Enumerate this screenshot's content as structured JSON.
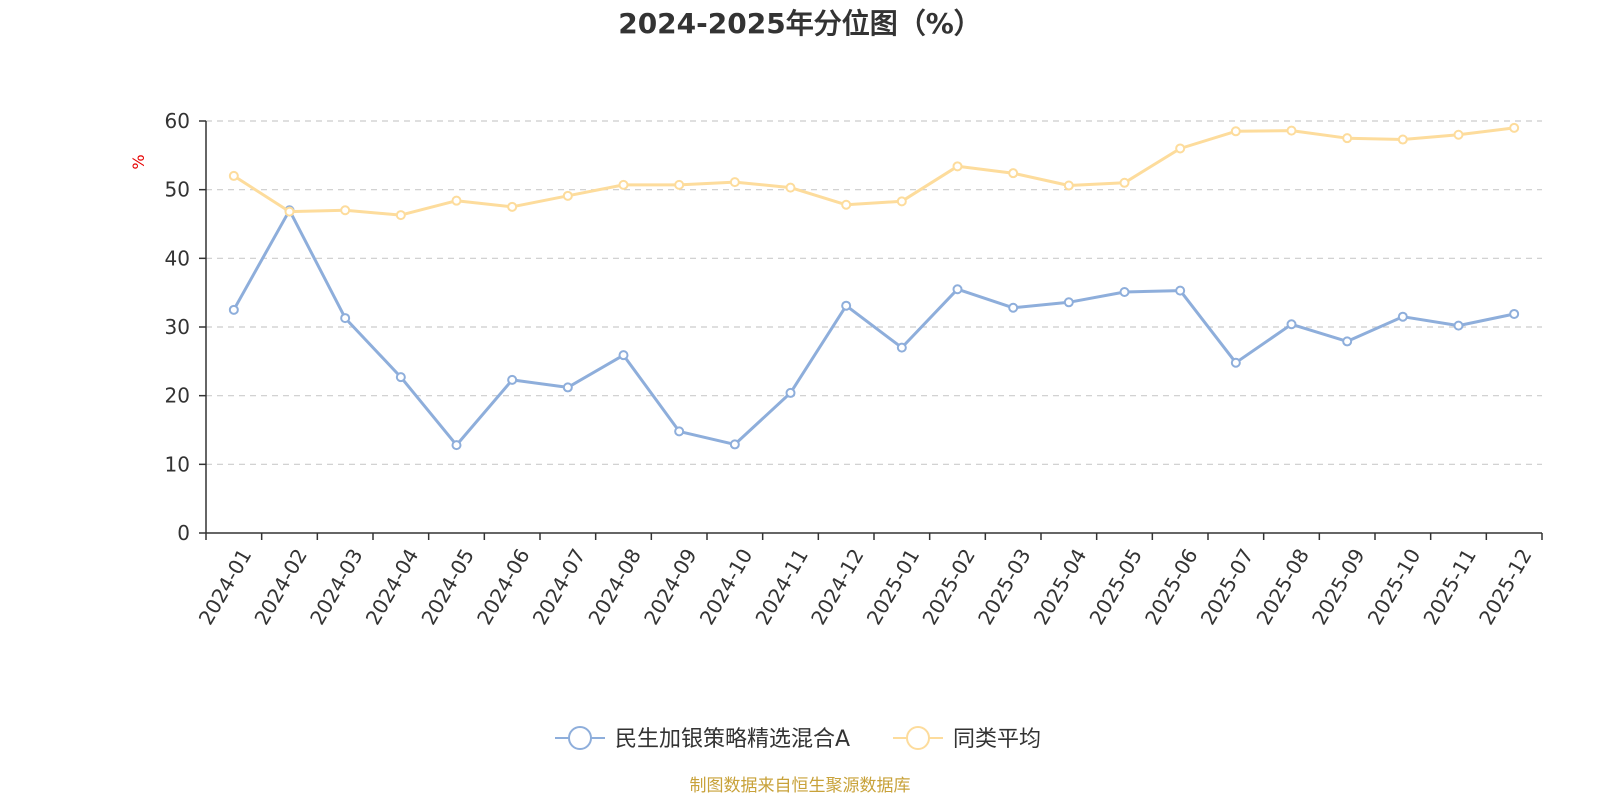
{
  "chart_data": {
    "type": "line",
    "title": "2024-2025年分位图（%）",
    "ylabel": "%",
    "xlabel": "",
    "ylim": [
      0,
      60
    ],
    "yticks": [
      0,
      10,
      20,
      30,
      40,
      50,
      60
    ],
    "grid": "horizontal-dashed",
    "legend_position": "bottom-center",
    "categories": [
      "2024-01",
      "2024-02",
      "2024-03",
      "2024-04",
      "2024-05",
      "2024-06",
      "2024-07",
      "2024-08",
      "2024-09",
      "2024-10",
      "2024-11",
      "2024-12",
      "2025-01",
      "2025-02",
      "2025-03",
      "2025-04",
      "2025-05",
      "2025-06",
      "2025-07",
      "2025-08",
      "2025-09",
      "2025-10",
      "2025-11",
      "2025-12"
    ],
    "series": [
      {
        "name": "民生加银策略精选混合A",
        "color": "#8eaedb",
        "values": [
          32.5,
          47.0,
          31.3,
          22.7,
          12.8,
          22.3,
          21.2,
          25.9,
          14.8,
          12.9,
          20.4,
          33.1,
          27.0,
          35.5,
          32.8,
          33.6,
          35.1,
          35.3,
          24.8,
          30.4,
          27.9,
          31.5,
          30.2,
          31.9
        ]
      },
      {
        "name": "同类平均",
        "color": "#fddc9c",
        "values": [
          52.0,
          46.8,
          47.0,
          46.3,
          48.4,
          47.5,
          49.1,
          50.7,
          50.7,
          51.1,
          50.3,
          47.8,
          48.3,
          53.4,
          52.4,
          50.6,
          51.0,
          56.0,
          58.5,
          58.6,
          57.5,
          57.3,
          58.0,
          59.0
        ]
      }
    ],
    "source": "制图数据来自恒生聚源数据库"
  },
  "colors": {
    "axis": "#333333",
    "grid": "#cccccc",
    "ylabel": "#e60000",
    "source": "#c8a23a"
  }
}
